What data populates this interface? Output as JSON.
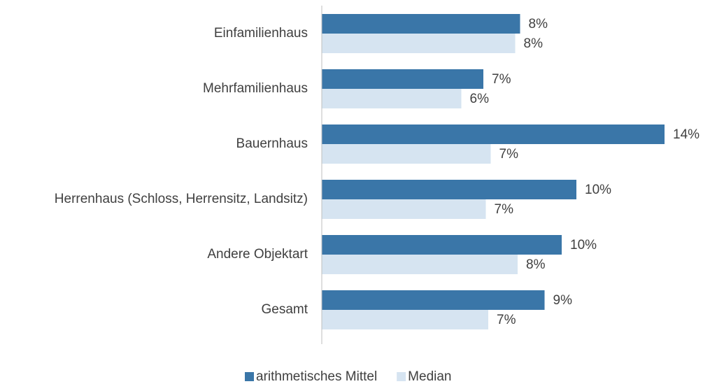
{
  "chart_data": {
    "type": "bar",
    "orientation": "horizontal",
    "categories": [
      "Einfamilienhaus",
      "Mehrfamilienhaus",
      "Bauernhaus",
      "Herrenhaus (Schloss, Herrensitz, Landsitz)",
      "Andere Objektart",
      "Gesamt"
    ],
    "series": [
      {
        "name": "arithmetisches Mittel",
        "color": "#3a76a8",
        "values": [
          8.1,
          6.6,
          14.0,
          10.4,
          9.8,
          9.1
        ],
        "value_labels": [
          "8%",
          "7%",
          "14%",
          "10%",
          "10%",
          "9%"
        ]
      },
      {
        "name": "Median",
        "color": "#d6e4f1",
        "values": [
          7.9,
          5.7,
          6.9,
          6.7,
          8.0,
          6.8
        ],
        "value_labels": [
          "8%",
          "6%",
          "7%",
          "7%",
          "8%",
          "7%"
        ]
      }
    ],
    "xlim": [
      0,
      14
    ],
    "legend": "bottom"
  }
}
